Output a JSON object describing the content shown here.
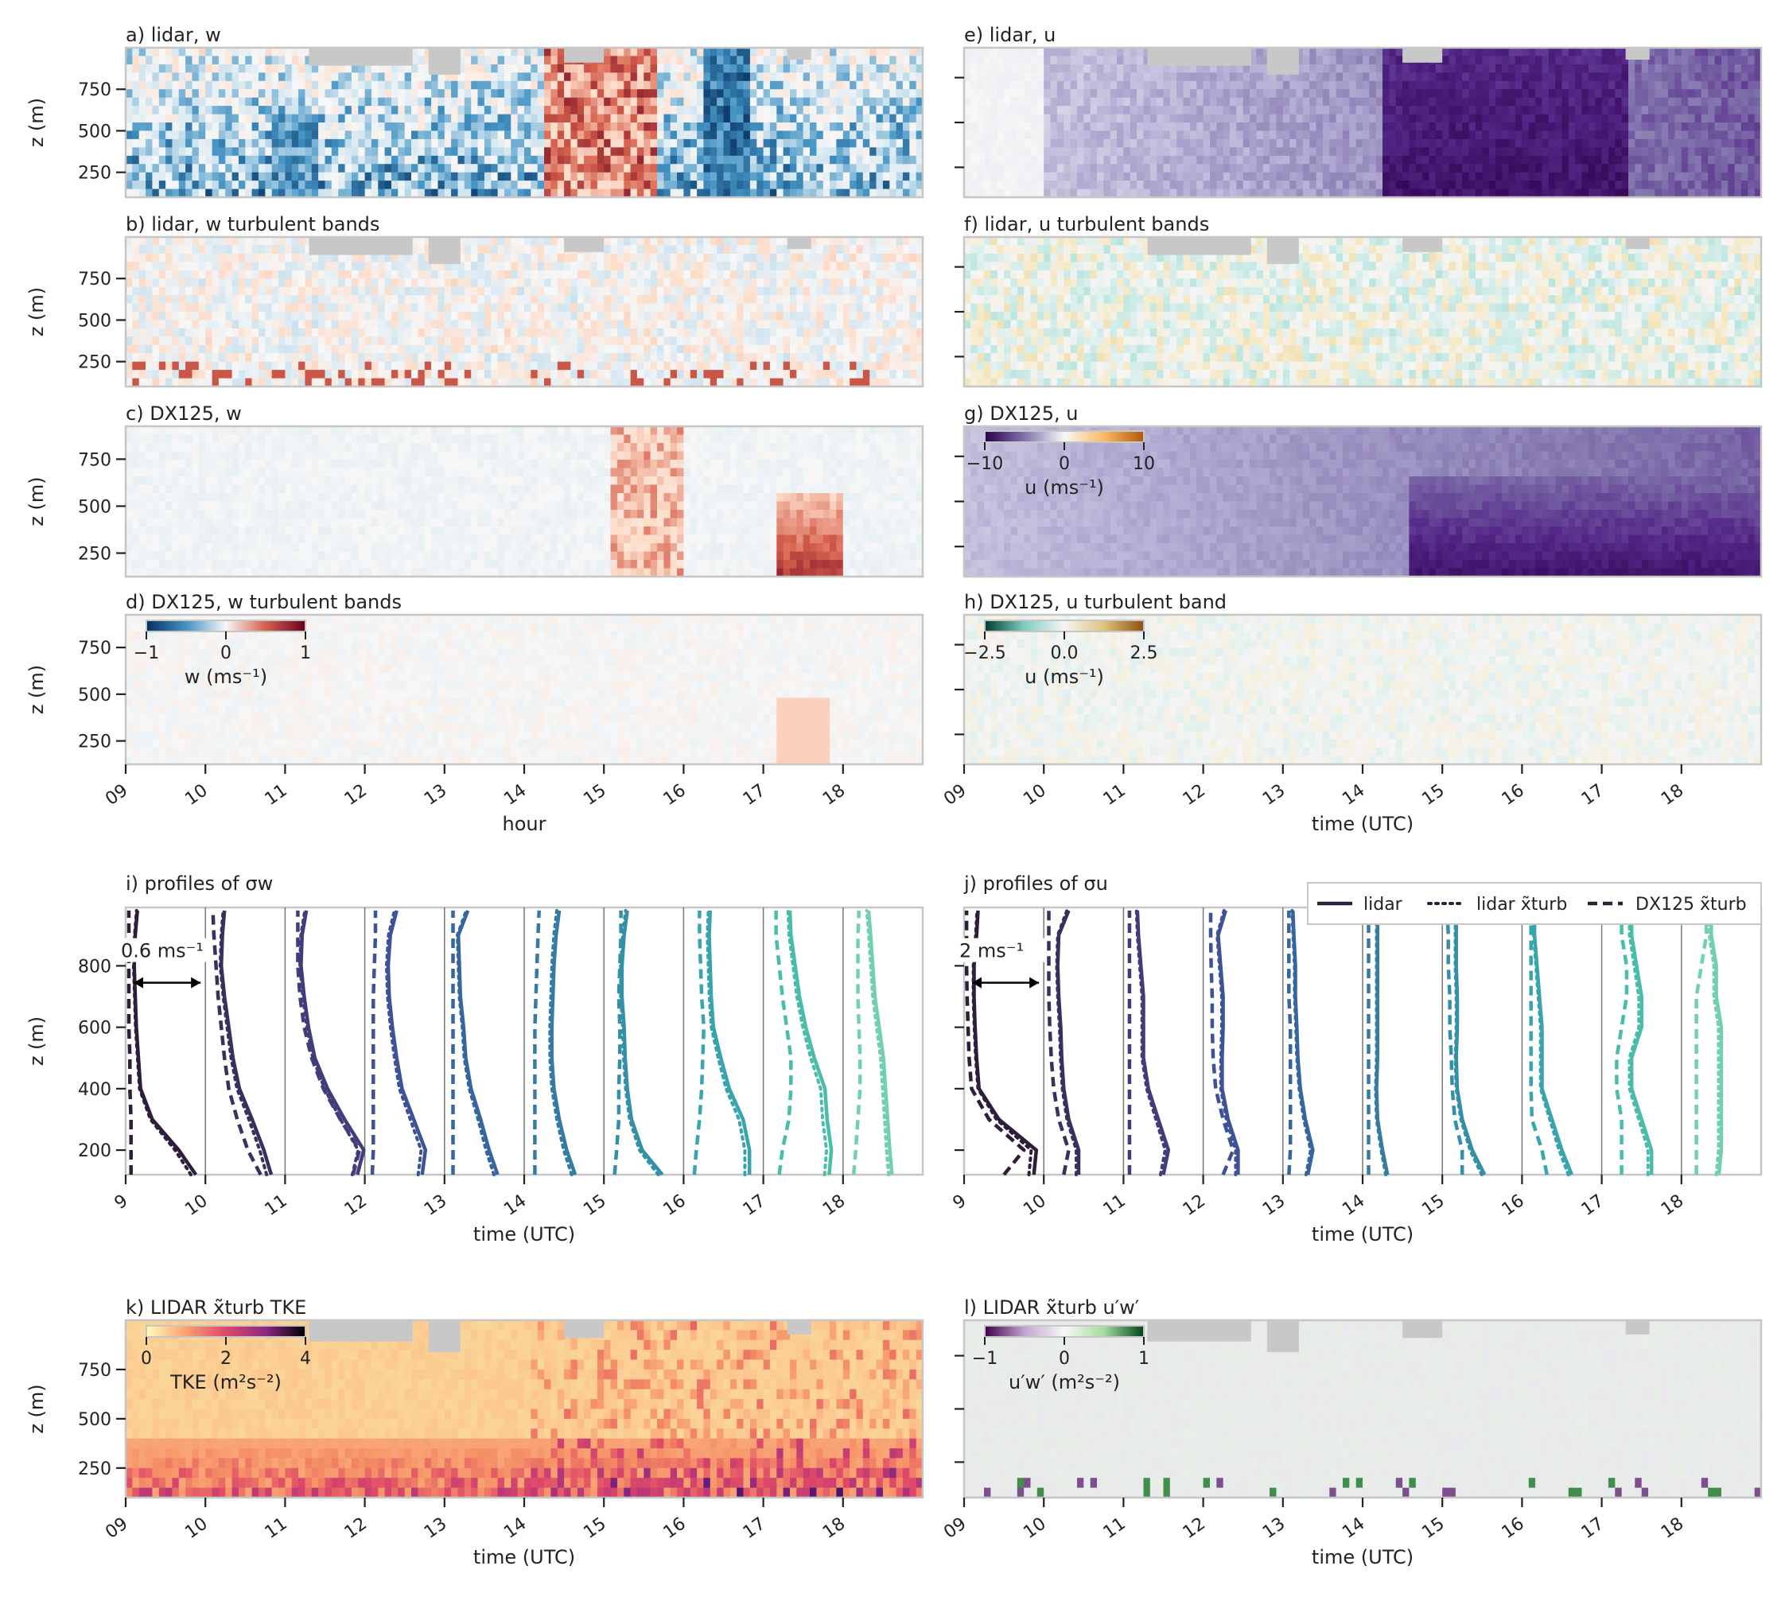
{
  "figure": {
    "hour_ticks": [
      "09",
      "10",
      "11",
      "12",
      "13",
      "14",
      "15",
      "16",
      "17",
      "18"
    ],
    "hour_ticks_plain": [
      "9",
      "10",
      "11",
      "12",
      "13",
      "14",
      "15",
      "16",
      "17",
      "18"
    ],
    "ylabel": "z (m)"
  },
  "panels": [
    {
      "id": "a",
      "title": "a) lidar, w",
      "yticks": [
        "250",
        "500",
        "750"
      ],
      "data_ticks": [
        250,
        500,
        750
      ],
      "ylim": [
        100,
        1000
      ],
      "xlabel": "",
      "cmap": "RdBu_r",
      "gaps": true
    },
    {
      "id": "b",
      "title": "b) lidar, w turbulent bands",
      "yticks": [
        "250",
        "500",
        "750"
      ],
      "data_ticks": [
        250,
        500,
        750
      ],
      "ylim": [
        100,
        1000
      ],
      "xlabel": "",
      "cmap": "RdBu_r",
      "gaps": true
    },
    {
      "id": "c",
      "title": "c) DX125, w",
      "yticks": [
        "250",
        "500",
        "750"
      ],
      "data_ticks": [
        250,
        500,
        750
      ],
      "ylim": [
        125,
        925
      ],
      "xlabel": "",
      "cmap": "RdBu_r",
      "gaps": false
    },
    {
      "id": "d",
      "title": "d) DX125, w turbulent bands",
      "yticks": [
        "250",
        "500",
        "750"
      ],
      "data_ticks": [
        250,
        500,
        750
      ],
      "ylim": [
        125,
        925
      ],
      "xlabel": "hour",
      "cmap": "RdBu_r",
      "gaps": false
    },
    {
      "id": "e",
      "title": "e) lidar, u",
      "xlabel": "",
      "cmap": "PuOr",
      "gaps": true
    },
    {
      "id": "f",
      "title": "f) lidar, u turbulent bands",
      "xlabel": "",
      "cmap": "BrBG",
      "gaps": true
    },
    {
      "id": "g",
      "title": "g) DX125, u",
      "xlabel": "",
      "cmap": "PuOr",
      "gaps": false
    },
    {
      "id": "h",
      "title": "h) DX125, u turbulent band",
      "xlabel": "time (UTC)",
      "cmap": "BrBG",
      "gaps": false
    },
    {
      "id": "k",
      "title": "k) LIDAR x̃turb TKE",
      "yticks": [
        "250",
        "500",
        "750"
      ],
      "data_ticks": [
        250,
        500,
        750
      ],
      "ylim": [
        100,
        1000
      ],
      "xlabel": "time (UTC)",
      "cmap": "magma_r",
      "gaps": true
    },
    {
      "id": "l",
      "title": "l) LIDAR x̃turb u′w′",
      "xlabel": "time (UTC)",
      "cmap": "PRGn",
      "gaps": true
    }
  ],
  "colorbars": {
    "w": {
      "ticks": [
        "−1",
        "0",
        "1"
      ],
      "label": "w (ms⁻¹)",
      "range": [
        -1,
        1
      ]
    },
    "u": {
      "ticks": [
        "−10",
        "0",
        "10"
      ],
      "label": "u (ms⁻¹)",
      "range": [
        -10,
        10
      ]
    },
    "u_band": {
      "ticks": [
        "−2.5",
        "0.0",
        "2.5"
      ],
      "label": "u (ms⁻¹)",
      "range": [
        -2.5,
        2.5
      ]
    },
    "tke": {
      "ticks": [
        "0",
        "2",
        "4"
      ],
      "label": "TKE (m²s⁻²)",
      "range": [
        0,
        4
      ]
    },
    "uw": {
      "ticks": [
        "−1",
        "0",
        "1"
      ],
      "label": "u′w′ (m²s⁻²)",
      "range": [
        -1,
        1
      ]
    }
  },
  "profiles": {
    "i": {
      "title": "i) profiles of σw",
      "scale_label": "0.6 ms⁻¹",
      "xlabel": "time (UTC)",
      "yticks": [
        "200",
        "400",
        "600",
        "800"
      ]
    },
    "j": {
      "title": "j) profiles of σu",
      "scale_label": "2 ms⁻¹",
      "xlabel": "time (UTC)"
    },
    "legend": [
      "lidar",
      "lidar x̃turb",
      "DX125 x̃turb"
    ],
    "colors": [
      "#2e1e3b",
      "#3b2f5e",
      "#413d7b",
      "#3e5297",
      "#37659e",
      "#357ba3",
      "#3390a6",
      "#38a4ab",
      "#4abcaa",
      "#72d1ad"
    ]
  },
  "chart_data": [
    {
      "type": "heatmap",
      "title": "a) lidar, w",
      "xlabel": "",
      "ylabel": "z (m)",
      "x_range_hour": [
        9,
        19
      ],
      "ylim": [
        100,
        1000
      ],
      "colorbar_range": [
        -1,
        1
      ]
    },
    {
      "type": "heatmap",
      "title": "b) lidar, w turbulent bands",
      "ylabel": "z (m)",
      "x_range_hour": [
        9,
        19
      ],
      "ylim": [
        100,
        1000
      ]
    },
    {
      "type": "heatmap",
      "title": "c) DX125, w",
      "ylabel": "z (m)",
      "x_range_hour": [
        9,
        19
      ],
      "ylim": [
        125,
        925
      ]
    },
    {
      "type": "heatmap",
      "title": "d) DX125, w turbulent bands",
      "xlabel": "hour",
      "ylabel": "z (m)",
      "x_range_hour": [
        9,
        19
      ],
      "ylim": [
        125,
        925
      ],
      "colorbar_range": [
        -1,
        1
      ]
    },
    {
      "type": "heatmap",
      "title": "e) lidar, u",
      "x_range_hour": [
        9,
        19
      ],
      "ylim": [
        100,
        1000
      ]
    },
    {
      "type": "heatmap",
      "title": "f) lidar, u turbulent bands",
      "x_range_hour": [
        9,
        19
      ],
      "ylim": [
        100,
        1000
      ]
    },
    {
      "type": "heatmap",
      "title": "g) DX125, u",
      "x_range_hour": [
        9,
        19
      ],
      "ylim": [
        125,
        925
      ],
      "colorbar_range": [
        -10,
        10
      ]
    },
    {
      "type": "heatmap",
      "title": "h) DX125, u turbulent band",
      "xlabel": "time (UTC)",
      "x_range_hour": [
        9,
        19
      ],
      "ylim": [
        125,
        925
      ],
      "colorbar_range": [
        -2.5,
        2.5
      ]
    },
    {
      "type": "line",
      "title": "i) profiles of σw",
      "xlabel": "time (UTC)",
      "ylabel": "z (m)",
      "ylim": [
        120,
        990
      ],
      "profile_z": [
        120,
        200,
        300,
        400,
        500,
        600,
        700,
        800,
        900,
        980
      ],
      "series": [
        {
          "name": "lidar",
          "hour": 9,
          "values": [
            0.66,
            0.5,
            0.25,
            0.14,
            0.12,
            0.1,
            0.09,
            0.08,
            0.09,
            0.11
          ]
        },
        {
          "name": "lidar",
          "hour": 10,
          "values": [
            0.62,
            0.55,
            0.44,
            0.32,
            0.26,
            0.22,
            0.18,
            0.15,
            0.16,
            0.18
          ]
        },
        {
          "name": "lidar",
          "hour": 11,
          "values": [
            0.68,
            0.74,
            0.56,
            0.4,
            0.28,
            0.22,
            0.18,
            0.15,
            0.16,
            0.2
          ]
        },
        {
          "name": "lidar",
          "hour": 12,
          "values": [
            0.54,
            0.57,
            0.46,
            0.35,
            0.3,
            0.26,
            0.23,
            0.22,
            0.24,
            0.3
          ]
        },
        {
          "name": "lidar",
          "hour": 13,
          "values": [
            0.5,
            0.42,
            0.34,
            0.25,
            0.2,
            0.18,
            0.15,
            0.14,
            0.13,
            0.22
          ]
        },
        {
          "name": "lidar",
          "hour": 14,
          "values": [
            0.48,
            0.4,
            0.33,
            0.28,
            0.26,
            0.26,
            0.27,
            0.28,
            0.3,
            0.33
          ]
        },
        {
          "name": "lidar",
          "hour": 15,
          "values": [
            0.55,
            0.36,
            0.26,
            0.22,
            0.2,
            0.19,
            0.17,
            0.17,
            0.19,
            0.22
          ]
        },
        {
          "name": "lidar",
          "hour": 16,
          "values": [
            0.62,
            0.62,
            0.56,
            0.43,
            0.35,
            0.28,
            0.26,
            0.25,
            0.24,
            0.25
          ]
        },
        {
          "name": "lidar",
          "hour": 17,
          "values": [
            0.62,
            0.64,
            0.6,
            0.58,
            0.48,
            0.4,
            0.34,
            0.3,
            0.26,
            0.25
          ]
        },
        {
          "name": "lidar",
          "hour": 18,
          "values": [
            0.46,
            0.44,
            0.42,
            0.4,
            0.38,
            0.34,
            0.3,
            0.28,
            0.26,
            0.24
          ]
        },
        {
          "name": "DX125 x̃turb",
          "hour": 9,
          "values": [
            0.05,
            0.05,
            0.05,
            0.04,
            0.04,
            0.03,
            0.03,
            0.03,
            0.03,
            0.03
          ]
        },
        {
          "name": "DX125 x̃turb",
          "hour": 10,
          "values": [
            0.52,
            0.4,
            0.3,
            0.22,
            0.18,
            0.15,
            0.12,
            0.1,
            0.08,
            0.07
          ]
        },
        {
          "name": "DX125 x̃turb",
          "hour": 11,
          "values": [
            0.64,
            0.7,
            0.52,
            0.36,
            0.25,
            0.18,
            0.14,
            0.12,
            0.12,
            0.12
          ]
        },
        {
          "name": "DX125 x̃turb",
          "hour": 12,
          "values": [
            0.07,
            0.08,
            0.08,
            0.08,
            0.08,
            0.08,
            0.08,
            0.09,
            0.1,
            0.1
          ]
        },
        {
          "name": "DX125 x̃turb",
          "hour": 13,
          "values": [
            0.08,
            0.08,
            0.08,
            0.08,
            0.08,
            0.08,
            0.08,
            0.08,
            0.08,
            0.08
          ]
        },
        {
          "name": "DX125 x̃turb",
          "hour": 14,
          "values": [
            0.1,
            0.1,
            0.1,
            0.1,
            0.1,
            0.1,
            0.11,
            0.12,
            0.13,
            0.14
          ]
        },
        {
          "name": "DX125 x̃turb",
          "hour": 15,
          "values": [
            0.1,
            0.12,
            0.14,
            0.14,
            0.15,
            0.15,
            0.14,
            0.15,
            0.16,
            0.16
          ]
        },
        {
          "name": "DX125 x̃turb",
          "hour": 16,
          "values": [
            0.1,
            0.12,
            0.15,
            0.17,
            0.18,
            0.19,
            0.17,
            0.16,
            0.15,
            0.15
          ]
        },
        {
          "name": "DX125 x̃turb",
          "hour": 17,
          "values": [
            0.15,
            0.18,
            0.24,
            0.26,
            0.26,
            0.22,
            0.18,
            0.15,
            0.12,
            0.12
          ]
        },
        {
          "name": "DX125 x̃turb",
          "hour": 18,
          "values": [
            0.1,
            0.12,
            0.14,
            0.16,
            0.16,
            0.15,
            0.14,
            0.14,
            0.14,
            0.15
          ]
        }
      ]
    },
    {
      "type": "line",
      "title": "j) profiles of σu",
      "xlabel": "time (UTC)",
      "ylim": [
        120,
        990
      ],
      "profile_z": [
        120,
        200,
        300,
        400,
        500,
        600,
        700,
        800,
        900,
        980
      ],
      "series": [
        {
          "name": "lidar",
          "hour": 9,
          "values": [
            1.4,
            1.45,
            0.7,
            0.3,
            0.25,
            0.22,
            0.2,
            0.2,
            0.25,
            0.28
          ]
        },
        {
          "name": "lidar",
          "hour": 10,
          "values": [
            0.7,
            0.7,
            0.5,
            0.4,
            0.36,
            0.34,
            0.3,
            0.28,
            0.3,
            0.5
          ]
        },
        {
          "name": "lidar",
          "hour": 11,
          "values": [
            0.8,
            0.9,
            0.7,
            0.5,
            0.4,
            0.4,
            0.4,
            0.35,
            0.3,
            0.28
          ]
        },
        {
          "name": "lidar",
          "hour": 12,
          "values": [
            0.7,
            0.7,
            0.5,
            0.38,
            0.38,
            0.4,
            0.4,
            0.35,
            0.3,
            0.45
          ]
        },
        {
          "name": "lidar",
          "hour": 13,
          "values": [
            0.5,
            0.6,
            0.45,
            0.35,
            0.3,
            0.28,
            0.25,
            0.25,
            0.22,
            0.2
          ]
        },
        {
          "name": "lidar",
          "hour": 14,
          "values": [
            0.5,
            0.4,
            0.3,
            0.28,
            0.3,
            0.3,
            0.3,
            0.3,
            0.3,
            0.3
          ]
        },
        {
          "name": "lidar",
          "hour": 15,
          "values": [
            0.85,
            0.6,
            0.4,
            0.3,
            0.28,
            0.3,
            0.3,
            0.28,
            0.28,
            0.28
          ]
        },
        {
          "name": "lidar",
          "hour": 16,
          "values": [
            1.0,
            0.8,
            0.6,
            0.4,
            0.4,
            0.4,
            0.35,
            0.3,
            0.25,
            0.25
          ]
        },
        {
          "name": "lidar",
          "hour": 17,
          "values": [
            1.0,
            1.0,
            0.8,
            0.6,
            0.6,
            0.8,
            0.8,
            0.7,
            0.6,
            0.6
          ]
        },
        {
          "name": "lidar",
          "hour": 18,
          "values": [
            0.75,
            0.8,
            0.8,
            0.8,
            0.8,
            0.8,
            0.7,
            0.7,
            0.6,
            0.6
          ]
        },
        {
          "name": "DX125 x̃turb",
          "hour": 9,
          "values": [
            0.8,
            1.2,
            0.5,
            0.15,
            0.1,
            0.08,
            0.06,
            0.05,
            0.05,
            0.05
          ]
        },
        {
          "name": "DX125 x̃turb",
          "hour": 10,
          "values": [
            0.4,
            0.5,
            0.3,
            0.2,
            0.15,
            0.12,
            0.1,
            0.1,
            0.1,
            0.1
          ]
        },
        {
          "name": "DX125 x̃turb",
          "hour": 11,
          "values": [
            0.12,
            0.12,
            0.12,
            0.12,
            0.12,
            0.12,
            0.12,
            0.12,
            0.12,
            0.12
          ]
        },
        {
          "name": "DX125 x̃turb",
          "hour": 12,
          "values": [
            0.4,
            0.6,
            0.4,
            0.25,
            0.2,
            0.18,
            0.18,
            0.16,
            0.15,
            0.15
          ]
        },
        {
          "name": "DX125 x̃turb",
          "hour": 13,
          "values": [
            0.12,
            0.15,
            0.15,
            0.15,
            0.15,
            0.15,
            0.12,
            0.12,
            0.12,
            0.12
          ]
        },
        {
          "name": "DX125 x̃turb",
          "hour": 14,
          "values": [
            0.12,
            0.12,
            0.12,
            0.12,
            0.12,
            0.12,
            0.12,
            0.12,
            0.12,
            0.12
          ]
        },
        {
          "name": "DX125 x̃turb",
          "hour": 15,
          "values": [
            0.4,
            0.4,
            0.25,
            0.2,
            0.18,
            0.15,
            0.15,
            0.12,
            0.12,
            0.1
          ]
        },
        {
          "name": "DX125 x̃turb",
          "hour": 16,
          "values": [
            0.5,
            0.4,
            0.2,
            0.18,
            0.18,
            0.18,
            0.18,
            0.18,
            0.18,
            0.18
          ]
        },
        {
          "name": "DX125 x̃turb",
          "hour": 17,
          "values": [
            0.4,
            0.4,
            0.4,
            0.3,
            0.3,
            0.4,
            0.5,
            0.5,
            0.4,
            0.4
          ]
        },
        {
          "name": "DX125 x̃turb",
          "hour": 18,
          "values": [
            0.3,
            0.3,
            0.3,
            0.3,
            0.3,
            0.3,
            0.3,
            0.4,
            0.5,
            0.5
          ]
        }
      ]
    },
    {
      "type": "heatmap",
      "title": "k) LIDAR x̃turb TKE",
      "xlabel": "time (UTC)",
      "ylabel": "z (m)",
      "x_range_hour": [
        9,
        19
      ],
      "ylim": [
        100,
        1000
      ],
      "colorbar_range": [
        0,
        4
      ]
    },
    {
      "type": "heatmap",
      "title": "l) LIDAR x̃turb u′w′",
      "xlabel": "time (UTC)",
      "x_range_hour": [
        9,
        19
      ],
      "ylim": [
        100,
        1000
      ],
      "colorbar_range": [
        -1,
        1
      ]
    }
  ]
}
